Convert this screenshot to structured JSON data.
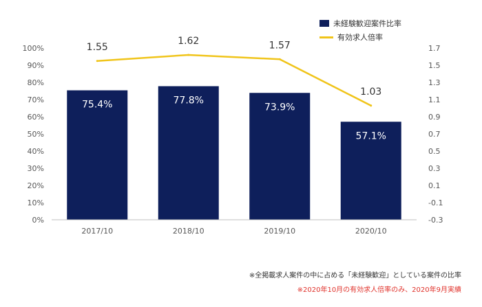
{
  "chart_data": {
    "type": "bar+line",
    "categories": [
      "2017/10",
      "2018/10",
      "2019/10",
      "2020/10"
    ],
    "series": [
      {
        "name": "未経験歓迎案件比率",
        "type": "bar",
        "axis": "left",
        "values": [
          75.4,
          77.8,
          73.9,
          57.1
        ],
        "labels": [
          "75.4%",
          "77.8%",
          "73.9%",
          "57.1%"
        ],
        "color": "#0e1f5b"
      },
      {
        "name": "有効求人倍率",
        "type": "line",
        "axis": "right",
        "values": [
          1.55,
          1.62,
          1.57,
          1.03
        ],
        "labels": [
          "1.55",
          "1.62",
          "1.57",
          "1.03"
        ],
        "color": "#f0c419"
      }
    ],
    "y_left": {
      "ylim": [
        0,
        100
      ],
      "ticks": [
        0,
        10,
        20,
        30,
        40,
        50,
        60,
        70,
        80,
        90,
        100
      ],
      "tick_labels": [
        "0%",
        "10%",
        "20%",
        "30%",
        "40%",
        "50%",
        "60%",
        "70%",
        "80%",
        "90%",
        "100%"
      ]
    },
    "y_right": {
      "ylim": [
        -0.3,
        1.7
      ],
      "ticks": [
        -0.3,
        -0.1,
        0.1,
        0.3,
        0.5,
        0.7,
        0.9,
        1.1,
        1.3,
        1.5,
        1.7
      ],
      "tick_labels": [
        "-0.3",
        "-0.1",
        "0.1",
        "0.3",
        "0.5",
        "0.7",
        "0.9",
        "1.1",
        "1.3",
        "1.5",
        "1.7"
      ]
    },
    "grid": false,
    "legend_position": "top-right"
  },
  "legend": {
    "bar_label": "未経験歓迎案件比率",
    "line_label": "有効求人倍率"
  },
  "footnotes": {
    "note1": "※全掲載求人案件の中に占める「未経験歓迎」としている案件の比率",
    "note2": "※2020年10月の有効求人倍率のみ、2020年9月実績"
  },
  "colors": {
    "bar": "#0e1f5b",
    "line": "#f0c419",
    "bar_label_text": "#ffffff",
    "line_label_text": "#333333",
    "axis_text": "#555555",
    "footnote_red": "#e0322b"
  }
}
